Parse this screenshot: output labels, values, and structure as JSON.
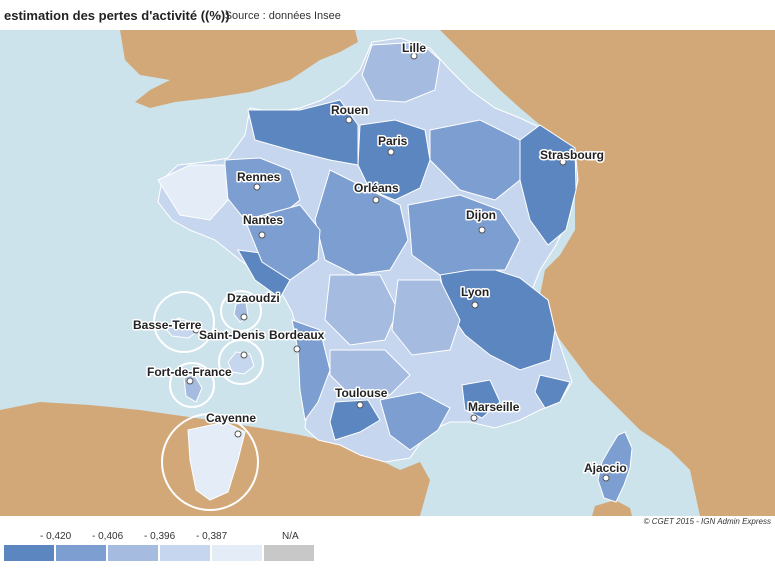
{
  "header": {
    "title": "estimation des pertes d'activité ((%))",
    "source": "- Source : données Insee"
  },
  "copyright": "© CGET 2015 - IGN Admin Express",
  "colors": {
    "sea": "#cde3ec",
    "land": "#d2a878",
    "border": "#ffffff",
    "class1": "#5b86c0",
    "class2": "#7d9ed0",
    "class3": "#a5bce0",
    "class4": "#c6d6ee",
    "class5": "#e3ecf7",
    "na": "#c8c8c8",
    "outremer_circle": "#ffffff"
  },
  "legend": [
    {
      "label": "- 0,420",
      "color": "#5b86c0"
    },
    {
      "label": "- 0,406",
      "color": "#7d9ed0"
    },
    {
      "label": "- 0,396",
      "color": "#a5bce0"
    },
    {
      "label": "- 0,387",
      "color": "#c6d6ee"
    },
    {
      "label": "",
      "color": "#e3ecf7"
    },
    {
      "label": "N/A",
      "color": "#c8c8c8"
    }
  ],
  "cities": {
    "lille": "Lille",
    "rouen": "Rouen",
    "paris": "Paris",
    "strasbourg": "Strasbourg",
    "rennes": "Rennes",
    "orleans": "Orléans",
    "nantes": "Nantes",
    "dijon": "Dijon",
    "lyon": "Lyon",
    "bordeaux": "Bordeaux",
    "toulouse": "Toulouse",
    "marseille": "Marseille",
    "ajaccio": "Ajaccio",
    "dzaoudzi": "Dzaoudzi",
    "basse_terre": "Basse-Terre",
    "saint_denis": "Saint-Denis",
    "fort_de_france": "Fort-de-France",
    "cayenne": "Cayenne"
  }
}
